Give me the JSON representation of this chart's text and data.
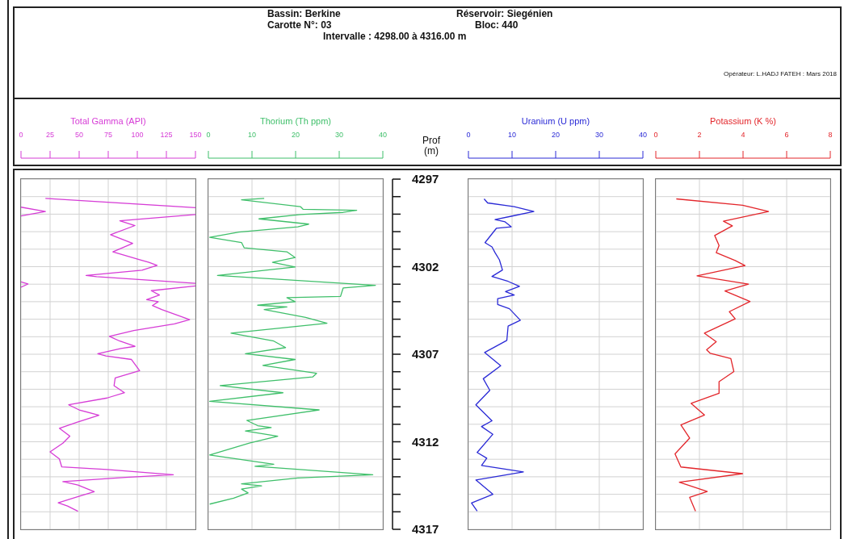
{
  "chart_data": [
    {
      "type": "line",
      "xlabel": "Total Gamma (API)",
      "xlim": [
        0,
        150
      ],
      "xticks": [
        0,
        25,
        50,
        75,
        100,
        125,
        150
      ],
      "ylim": [
        4317,
        4297
      ],
      "yticks": [
        4297,
        {
          "value": 4298,
          "label": null
        },
        {
          "value": 4299,
          "label": null
        },
        {
          "value": 4300,
          "label": null
        },
        {
          "value": 4301,
          "label": null
        },
        4302,
        {
          "value": 4303,
          "label": null
        },
        {
          "value": 4304,
          "label": null
        },
        {
          "value": 4305,
          "label": null
        },
        {
          "value": 4306,
          "label": null
        },
        4307,
        {
          "value": 4308,
          "label": null
        },
        {
          "value": 4309,
          "label": null
        },
        {
          "value": 4310,
          "label": null
        },
        {
          "value": 4311,
          "label": null
        },
        4312,
        {
          "value": 4313,
          "label": null
        },
        {
          "value": 4314,
          "label": null
        },
        {
          "value": 4315,
          "label": null
        },
        {
          "value": 4316,
          "label": null
        },
        4317
      ],
      "tick_labels": "x",
      "grid": true,
      "annotations": [
        "Bassin: Berkine",
        "Réservoir: Siegénien",
        "Carotte N°: 03",
        "Bloc: 440",
        "Intervalle : 4298.00 à 4316.00 m",
        "Opérateur: L.HADJ FATEH : Mars 2018"
      ],
      "series": [
        {
          "color": "#d63cd6",
          "x": [
            21,
            150,
            null,
            150,
            85,
            98,
            77,
            96,
            79,
            102,
            110,
            117,
            104,
            56,
            65,
            109,
            150,
            null,
            150,
            112,
            119,
            108,
            118,
            113,
            121,
            145,
            132,
            97,
            76,
            85,
            98,
            86,
            66,
            73,
            95,
            102,
            81,
            80,
            89,
            74,
            41,
            50,
            67,
            48,
            33,
            42,
            36,
            25,
            33,
            35,
            74,
            131,
            90,
            36,
            49,
            63,
            52,
            32,
            40,
            49
          ],
          "values": [
            4298.1,
            4298.63,
            null,
            4299.02,
            4299.38,
            4299.65,
            4300.17,
            4300.67,
            4301.15,
            4301.6,
            4301.75,
            4301.93,
            4302.2,
            4302.5,
            4302.57,
            4302.77,
            4302.95,
            null,
            4303.1,
            4303.37,
            4303.62,
            4303.88,
            4304.0,
            4304.22,
            4304.45,
            4305.02,
            4305.27,
            4305.65,
            4305.98,
            4306.25,
            4306.55,
            4306.67,
            4306.97,
            4307.1,
            4307.3,
            4307.94,
            4308.35,
            4308.8,
            4309.2,
            4309.5,
            4309.89,
            4310.18,
            4310.48,
            4310.89,
            4311.23,
            4311.68,
            4312.08,
            4312.58,
            4312.98,
            4313.43,
            4313.58,
            4313.88,
            4314.03,
            4314.28,
            4314.47,
            4314.85,
            4315.07,
            4315.48,
            4315.67,
            4315.97
          ]
        },
        {
          "color": "#d63cd6",
          "x": [
            0,
            21,
            0
          ],
          "values": [
            4298.6,
            4298.85,
            4299.1
          ]
        },
        {
          "color": "#d63cd6",
          "x": [
            0,
            6,
            0
          ],
          "values": [
            4302.87,
            4302.99,
            4303.17
          ]
        }
      ]
    },
    {
      "type": "line",
      "xlabel": "Thorium (Th ppm)",
      "xlim": [
        0,
        40
      ],
      "xticks": [
        0,
        10,
        20,
        30,
        40
      ],
      "ylim": [
        4317,
        4297
      ],
      "yticks": [
        4297,
        {
          "value": 4298,
          "label": null
        },
        {
          "value": 4299,
          "label": null
        },
        {
          "value": 4300,
          "label": null
        },
        {
          "value": 4301,
          "label": null
        },
        4302,
        {
          "value": 4303,
          "label": null
        },
        {
          "value": 4304,
          "label": null
        },
        {
          "value": 4305,
          "label": null
        },
        {
          "value": 4306,
          "label": null
        },
        4307,
        {
          "value": 4308,
          "label": null
        },
        {
          "value": 4309,
          "label": null
        },
        {
          "value": 4310,
          "label": null
        },
        {
          "value": 4311,
          "label": null
        },
        4312,
        {
          "value": 4313,
          "label": null
        },
        {
          "value": 4314,
          "label": null
        },
        {
          "value": 4315,
          "label": null
        },
        {
          "value": 4316,
          "label": null
        },
        4317
      ],
      "tick_labels": "x",
      "grid": true,
      "series": [
        {
          "color": "#3fbf6a",
          "x": [
            12.8,
            7.6,
            21.1,
            21.7,
            34.0,
            30.9,
            21.1,
            11.6,
            23.0,
            20.5,
            7.0,
            0.3,
            7.6,
            8.2,
            18.0,
            19.9,
            14.7,
            19.9,
            2.1,
            38.3,
            30.9,
            30.3,
            18.0,
            19.9,
            11.3,
            18.0,
            12.8,
            22.3,
            27.2,
            5.2,
            15.0,
            17.7,
            8.5,
            19.9,
            12.5,
            24.8,
            23.9,
            2.7,
            17.1,
            0.3,
            25.4,
            8.8,
            11.3,
            14.4,
            8.5,
            15.9,
            9.4,
            0.3,
            15.0,
            10.7,
            37.7,
            20.5,
            7.6,
            12.2,
            7.6,
            9.1,
            5.8,
            0.3
          ],
          "values": [
            4298.1,
            4298.18,
            4298.57,
            4298.72,
            4298.78,
            4298.9,
            4299.02,
            4299.27,
            4299.57,
            4299.72,
            4300.02,
            4300.32,
            4300.62,
            4300.92,
            4301.15,
            4301.48,
            4301.75,
            4302.02,
            4302.5,
            4303.07,
            4303.22,
            4303.7,
            4303.77,
            4304.0,
            4304.2,
            4304.3,
            4304.45,
            4304.9,
            4305.23,
            4305.8,
            4306.25,
            4306.62,
            4306.97,
            4307.3,
            4307.64,
            4308.09,
            4308.3,
            4308.79,
            4309.2,
            4309.69,
            4310.18,
            4310.78,
            4311.08,
            4311.19,
            4311.38,
            4311.68,
            4312.08,
            4312.75,
            4313.28,
            4313.4,
            4313.88,
            4314.07,
            4314.4,
            4314.52,
            4314.7,
            4314.92,
            4315.22,
            4315.56
          ]
        }
      ]
    },
    {
      "type": "line",
      "xlabel": "Uranium (U ppm)",
      "ylabel": "Prof (m)",
      "xlim": [
        0,
        40
      ],
      "xticks": [
        0,
        10,
        20,
        30,
        40
      ],
      "ylim": [
        4317,
        4297
      ],
      "yticks": [
        4297,
        {
          "value": 4298,
          "label": null
        },
        {
          "value": 4299,
          "label": null
        },
        {
          "value": 4300,
          "label": null
        },
        {
          "value": 4301,
          "label": null
        },
        4302,
        {
          "value": 4303,
          "label": null
        },
        {
          "value": 4304,
          "label": null
        },
        {
          "value": 4305,
          "label": null
        },
        {
          "value": 4306,
          "label": null
        },
        4307,
        {
          "value": 4308,
          "label": null
        },
        {
          "value": 4309,
          "label": null
        },
        {
          "value": 4310,
          "label": null
        },
        {
          "value": 4311,
          "label": null
        },
        4312,
        {
          "value": 4313,
          "label": null
        },
        {
          "value": 4314,
          "label": null
        },
        {
          "value": 4315,
          "label": null
        },
        {
          "value": 4316,
          "label": null
        },
        4317
      ],
      "grid": true,
      "series": [
        {
          "color": "#2a2ad6",
          "x": [
            3.6,
            4.4,
            10.5,
            15.0,
            9.8,
            6.1,
            8.4,
            9.8,
            6.4,
            3.8,
            5.4,
            6.1,
            7.1,
            7.8,
            5.4,
            9.1,
            11.7,
            8.5,
            10.5,
            6.7,
            6.7,
            9.4,
            11.9,
            9.1,
            8.8,
            3.7,
            7.4,
            3.4,
            4.9,
            1.7,
            5.4,
            3.0,
            5.6,
            2.0,
            4.2,
            3.0,
            12.6,
            1.7,
            5.6,
            0.7,
            2.0
          ],
          "values": [
            4298.13,
            4298.36,
            4298.57,
            4298.85,
            4299.12,
            4299.31,
            4299.44,
            4299.72,
            4299.81,
            4300.63,
            4300.87,
            4301.2,
            4301.61,
            4302.19,
            4302.56,
            4302.84,
            4303.12,
            4303.42,
            4303.62,
            4303.83,
            4304.16,
            4304.4,
            4305.06,
            4305.39,
            4306.21,
            4306.9,
            4307.66,
            4308.4,
            4309.06,
            4309.89,
            4310.8,
            4311.13,
            4311.57,
            4312.61,
            4312.94,
            4313.35,
            4313.72,
            4314.18,
            4315.0,
            4315.5,
            4315.96
          ]
        }
      ]
    },
    {
      "type": "line",
      "xlabel": "Potassium (K %)",
      "xlim": [
        0,
        8
      ],
      "xticks": [
        0,
        2,
        4,
        6,
        8
      ],
      "ylim": [
        4317,
        4297
      ],
      "yticks": [
        4297,
        {
          "value": 4298,
          "label": null
        },
        {
          "value": 4299,
          "label": null
        },
        {
          "value": 4300,
          "label": null
        },
        {
          "value": 4301,
          "label": null
        },
        4302,
        {
          "value": 4303,
          "label": null
        },
        {
          "value": 4304,
          "label": null
        },
        {
          "value": 4305,
          "label": null
        },
        {
          "value": 4306,
          "label": null
        },
        4307,
        {
          "value": 4308,
          "label": null
        },
        {
          "value": 4309,
          "label": null
        },
        {
          "value": 4310,
          "label": null
        },
        {
          "value": 4311,
          "label": null
        },
        4312,
        {
          "value": 4313,
          "label": null
        },
        {
          "value": 4314,
          "label": null
        },
        {
          "value": 4315,
          "label": null
        },
        {
          "value": 4316,
          "label": null
        },
        4317
      ],
      "tick_labels": "x",
      "grid": true,
      "series": [
        {
          "color": "#e3262b",
          "x": [
            0.94,
            3.98,
            5.17,
            3.1,
            3.51,
            2.7,
            2.9,
            2.77,
            3.64,
            4.09,
            1.89,
            4.25,
            3.17,
            4.32,
            3.37,
            3.64,
            2.23,
            2.77,
            2.33,
            2.5,
            3.44,
            3.58,
            2.9,
            2.9,
            1.62,
            2.23,
            1.15,
            1.55,
            0.88,
            1.15,
            3.98,
            1.08,
            2.36,
            1.55,
            1.69,
            1.82
          ],
          "values": [
            4298.13,
            4298.49,
            4298.85,
            4299.4,
            4299.67,
            4300.22,
            4300.79,
            4301.2,
            4301.65,
            4301.94,
            4302.52,
            4303.0,
            4303.39,
            4303.99,
            4304.57,
            4304.98,
            4305.8,
            4306.29,
            4306.75,
            4306.95,
            4307.25,
            4307.99,
            4308.57,
            4309.23,
            4309.81,
            4310.47,
            4311.04,
            4311.79,
            4312.69,
            4313.44,
            4313.82,
            4314.31,
            4314.84,
            4315.17,
            4315.58,
            4315.96
          ]
        }
      ]
    }
  ]
}
